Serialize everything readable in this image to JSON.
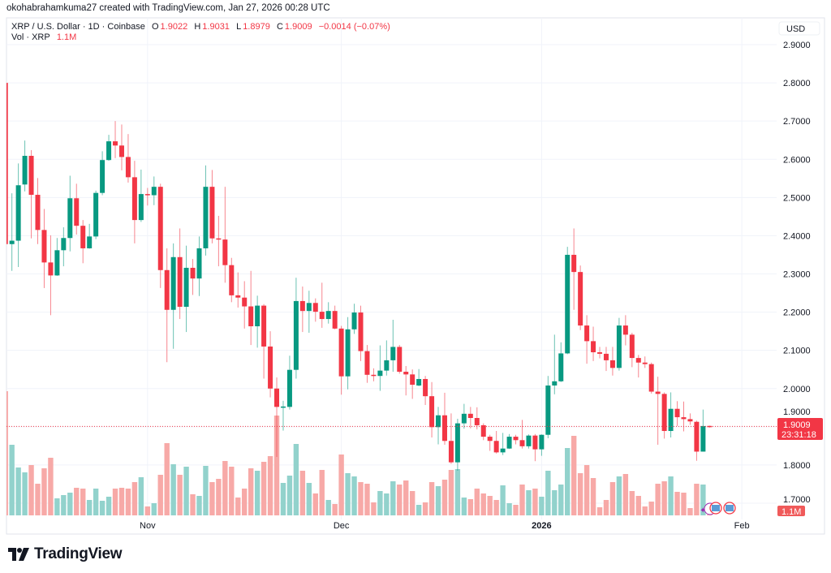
{
  "credit": "okohabrahamkuma27 created with TradingView.com, Jan 27, 2026 00:28 UTC",
  "legend": {
    "symbol": "XRP / U.S. Dollar · 1D · Coinbase",
    "o_label": "O",
    "o": "1.9022",
    "h_label": "H",
    "h": "1.9031",
    "l_label": "L",
    "l": "1.8979",
    "c_label": "C",
    "c": "1.9009",
    "change": "−0.0014 (−0.07%)",
    "vol_label": "Vol · XRP",
    "vol": "1.1M"
  },
  "brand": "TradingView",
  "colors": {
    "up": "#089981",
    "down": "#f23645",
    "up_vol": "#92d2cc",
    "down_vol": "#f7a9a7",
    "grid": "#f0f3fa"
  },
  "chart_data": {
    "type": "candlestick",
    "currency_label": "USD",
    "ylim": [
      1.7,
      2.9
    ],
    "y_ticks": [
      "2.9000",
      "2.8000",
      "2.7000",
      "2.6000",
      "2.5000",
      "2.4000",
      "2.3000",
      "2.2000",
      "2.1000",
      "2.0000",
      "1.9000",
      "1.8000",
      "1.7000"
    ],
    "x_ticks": [
      "Nov",
      "Dec",
      "2026",
      "Feb"
    ],
    "last_price": "1.9009",
    "countdown": "23:31:18",
    "last_volume": "1.1M",
    "ohlc": [
      [
        2.8,
        2.8,
        2.378,
        2.378
      ],
      [
        2.378,
        2.511,
        2.308,
        2.387
      ],
      [
        2.387,
        2.589,
        2.318,
        2.532
      ],
      [
        2.534,
        2.649,
        2.516,
        2.609
      ],
      [
        2.609,
        2.624,
        2.393,
        2.507
      ],
      [
        2.507,
        2.551,
        2.378,
        2.415
      ],
      [
        2.415,
        2.47,
        2.263,
        2.33
      ],
      [
        2.33,
        2.401,
        2.192,
        2.296
      ],
      [
        2.296,
        2.394,
        2.295,
        2.362
      ],
      [
        2.362,
        2.422,
        2.32,
        2.394
      ],
      [
        2.394,
        2.557,
        2.359,
        2.498
      ],
      [
        2.498,
        2.536,
        2.403,
        2.426
      ],
      [
        2.426,
        2.441,
        2.328,
        2.367
      ],
      [
        2.367,
        2.431,
        2.366,
        2.398
      ],
      [
        2.398,
        2.518,
        2.391,
        2.512
      ],
      [
        2.512,
        2.621,
        2.506,
        2.598
      ],
      [
        2.598,
        2.664,
        2.596,
        2.647
      ],
      [
        2.647,
        2.7,
        2.603,
        2.636
      ],
      [
        2.636,
        2.691,
        2.571,
        2.606
      ],
      [
        2.606,
        2.666,
        2.539,
        2.553
      ],
      [
        2.553,
        2.596,
        2.38,
        2.441
      ],
      [
        2.441,
        2.573,
        2.436,
        2.509
      ],
      [
        2.509,
        2.525,
        2.479,
        2.506
      ],
      [
        2.506,
        2.555,
        2.48,
        2.528
      ],
      [
        2.528,
        2.536,
        2.263,
        2.31
      ],
      [
        2.31,
        2.367,
        2.069,
        2.206
      ],
      [
        2.206,
        2.38,
        2.104,
        2.344
      ],
      [
        2.344,
        2.419,
        2.182,
        2.214
      ],
      [
        2.214,
        2.374,
        2.148,
        2.316
      ],
      [
        2.316,
        2.339,
        2.245,
        2.288
      ],
      [
        2.288,
        2.398,
        2.242,
        2.367
      ],
      [
        2.367,
        2.584,
        2.348,
        2.528
      ],
      [
        2.528,
        2.572,
        2.38,
        2.393
      ],
      [
        2.393,
        2.452,
        2.32,
        2.39
      ],
      [
        2.39,
        2.528,
        2.277,
        2.323
      ],
      [
        2.323,
        2.342,
        2.226,
        2.244
      ],
      [
        2.244,
        2.304,
        2.212,
        2.238
      ],
      [
        2.238,
        2.281,
        2.157,
        2.215
      ],
      [
        2.215,
        2.308,
        2.114,
        2.163
      ],
      [
        2.163,
        2.243,
        2.107,
        2.217
      ],
      [
        2.217,
        2.221,
        2.026,
        2.11
      ],
      [
        2.11,
        2.15,
        1.977,
        2.0
      ],
      [
        2.0,
        2.029,
        1.821,
        1.952
      ],
      [
        1.952,
        1.968,
        1.89,
        1.953
      ],
      [
        1.952,
        2.086,
        1.945,
        2.049
      ],
      [
        2.049,
        2.29,
        2.026,
        2.229
      ],
      [
        2.229,
        2.267,
        2.148,
        2.203
      ],
      [
        2.203,
        2.256,
        2.146,
        2.224
      ],
      [
        2.224,
        2.236,
        2.175,
        2.201
      ],
      [
        2.201,
        2.277,
        2.159,
        2.182
      ],
      [
        2.182,
        2.226,
        2.17,
        2.203
      ],
      [
        2.203,
        2.217,
        2.155,
        2.157
      ],
      [
        2.157,
        2.164,
        1.984,
        2.032
      ],
      [
        2.032,
        2.187,
        1.998,
        2.155
      ],
      [
        2.155,
        2.222,
        2.143,
        2.199
      ],
      [
        2.199,
        2.217,
        2.072,
        2.098
      ],
      [
        2.098,
        2.114,
        2.015,
        2.036
      ],
      [
        2.036,
        2.053,
        2.019,
        2.033
      ],
      [
        2.033,
        2.113,
        1.994,
        2.047
      ],
      [
        2.047,
        2.126,
        2.034,
        2.074
      ],
      [
        2.074,
        2.18,
        2.044,
        2.109
      ],
      [
        2.109,
        2.114,
        2.039,
        2.044
      ],
      [
        2.044,
        2.059,
        1.982,
        2.037
      ],
      [
        2.037,
        2.05,
        1.973,
        2.01
      ],
      [
        2.008,
        2.051,
        2.006,
        2.025
      ],
      [
        2.025,
        2.033,
        1.957,
        1.98
      ],
      [
        1.98,
        2.017,
        1.872,
        1.899
      ],
      [
        1.899,
        1.952,
        1.854,
        1.93
      ],
      [
        1.93,
        1.989,
        1.853,
        1.863
      ],
      [
        1.863,
        1.935,
        1.803,
        1.807
      ],
      [
        1.807,
        1.921,
        1.785,
        1.909
      ],
      [
        1.909,
        1.96,
        1.895,
        1.934
      ],
      [
        1.934,
        1.952,
        1.896,
        1.923
      ],
      [
        1.923,
        1.951,
        1.893,
        1.904
      ],
      [
        1.904,
        1.909,
        1.865,
        1.874
      ],
      [
        1.874,
        1.879,
        1.837,
        1.863
      ],
      [
        1.863,
        1.889,
        1.83,
        1.833
      ],
      [
        1.833,
        1.884,
        1.826,
        1.843
      ],
      [
        1.843,
        1.881,
        1.842,
        1.874
      ],
      [
        1.874,
        1.879,
        1.854,
        1.865
      ],
      [
        1.865,
        1.918,
        1.843,
        1.849
      ],
      [
        1.849,
        1.88,
        1.843,
        1.877
      ],
      [
        1.877,
        1.881,
        1.81,
        1.841
      ],
      [
        1.841,
        1.88,
        1.824,
        1.879
      ],
      [
        1.879,
        2.033,
        1.87,
        2.008
      ],
      [
        2.008,
        2.141,
        1.985,
        2.019
      ],
      [
        2.019,
        2.121,
        2.017,
        2.092
      ],
      [
        2.092,
        2.371,
        2.09,
        2.35
      ],
      [
        2.35,
        2.419,
        2.206,
        2.305
      ],
      [
        2.305,
        2.322,
        2.153,
        2.165
      ],
      [
        2.165,
        2.192,
        2.065,
        2.124
      ],
      [
        2.124,
        2.162,
        2.072,
        2.095
      ],
      [
        2.095,
        2.109,
        2.079,
        2.091
      ],
      [
        2.091,
        2.109,
        2.046,
        2.074
      ],
      [
        2.074,
        2.109,
        2.034,
        2.054
      ],
      [
        2.054,
        2.185,
        2.047,
        2.165
      ],
      [
        2.165,
        2.192,
        2.113,
        2.141
      ],
      [
        2.141,
        2.146,
        2.056,
        2.08
      ],
      [
        2.08,
        2.088,
        2.029,
        2.068
      ],
      [
        2.068,
        2.084,
        2.054,
        2.064
      ],
      [
        2.064,
        2.068,
        1.987,
        1.992
      ],
      [
        1.992,
        2.031,
        1.853,
        1.986
      ],
      [
        1.986,
        1.99,
        1.869,
        1.889
      ],
      [
        1.889,
        1.99,
        1.872,
        1.947
      ],
      [
        1.947,
        1.967,
        1.902,
        1.925
      ],
      [
        1.925,
        1.966,
        1.888,
        1.92
      ],
      [
        1.92,
        1.935,
        1.905,
        1.914
      ],
      [
        1.913,
        1.916,
        1.811,
        1.835
      ],
      [
        1.835,
        1.945,
        1.835,
        1.902
      ],
      [
        1.9022,
        1.9031,
        1.8979,
        1.9009
      ]
    ],
    "volume_millions": [
      459,
      261,
      177,
      159,
      186,
      117,
      174,
      213,
      63,
      75,
      84,
      102,
      99,
      57,
      99,
      54,
      69,
      99,
      102,
      99,
      123,
      141,
      33,
      45,
      150,
      267,
      189,
      150,
      180,
      78,
      72,
      183,
      123,
      135,
      201,
      180,
      66,
      99,
      174,
      165,
      198,
      219,
      369,
      120,
      147,
      264,
      165,
      120,
      81,
      168,
      57,
      42,
      225,
      156,
      144,
      123,
      117,
      48,
      90,
      81,
      126,
      114,
      129,
      90,
      39,
      48,
      123,
      108,
      132,
      168,
      171,
      66,
      60,
      99,
      81,
      72,
      57,
      111,
      45,
      39,
      114,
      93,
      99,
      69,
      165,
      93,
      114,
      249,
      294,
      156,
      186,
      138,
      30,
      57,
      123,
      144,
      153,
      90,
      72,
      33,
      51,
      117,
      126,
      144,
      87,
      84,
      27,
      117,
      114,
      1.1
    ]
  }
}
